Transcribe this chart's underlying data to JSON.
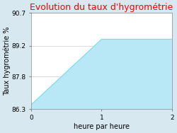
{
  "title": "Evolution du taux d'hygrométrie",
  "title_color": "#ff0000",
  "xlabel": "heure par heure",
  "ylabel": "Taux hygrométrie %",
  "x": [
    0,
    1,
    2
  ],
  "y": [
    86.5,
    89.5,
    89.5
  ],
  "ylim": [
    86.3,
    90.7
  ],
  "xlim": [
    0,
    2
  ],
  "yticks": [
    86.3,
    87.8,
    89.2,
    90.7
  ],
  "xticks": [
    0,
    1,
    2
  ],
  "line_color": "#7dd8e8",
  "fill_color": "#b8e8f5",
  "fill_alpha": 1.0,
  "bg_color": "#d8e8f0",
  "axes_bg": "#ffffff",
  "title_fontsize": 9,
  "label_fontsize": 7,
  "tick_fontsize": 6.5
}
